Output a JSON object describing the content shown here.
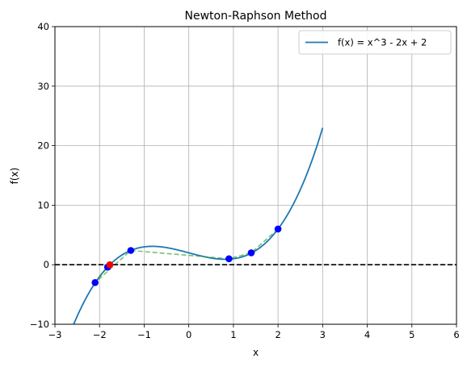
{
  "chart_data": {
    "type": "line",
    "title": "Newton-Raphson Method",
    "xlabel": "x",
    "ylabel": "f(x)",
    "xlim": [
      -3,
      6
    ],
    "ylim": [
      -10,
      40
    ],
    "xticks": [
      -3,
      -2,
      -1,
      0,
      1,
      2,
      3,
      4,
      5,
      6
    ],
    "yticks": [
      -10,
      0,
      10,
      20,
      30,
      40
    ],
    "grid": true,
    "legend": {
      "position": "top-right",
      "entries": [
        "f(x) = x^3 - 2x + 2"
      ]
    },
    "series": [
      {
        "name": "f(x) = x^3 - 2x + 2",
        "kind": "function",
        "expression": "x^3 - 2x + 2",
        "x_range": [
          -3,
          3
        ],
        "color": "#1f77b4"
      },
      {
        "kind": "iteration-path",
        "style": "dashed",
        "color": "#2ca02c",
        "x": [
          2.0,
          1.4,
          0.9,
          -1.3,
          -2.1,
          -1.82,
          -1.77
        ],
        "y": [
          6.0,
          2.0,
          1.0,
          2.4,
          -3.0,
          -0.4,
          0.0
        ]
      },
      {
        "kind": "iterates",
        "color": "#0000ff",
        "x": [
          2.0,
          1.4,
          0.9,
          -1.3,
          -2.1,
          -1.82
        ],
        "y": [
          6.0,
          2.0,
          1.0,
          2.4,
          -3.0,
          -0.4
        ]
      },
      {
        "kind": "root",
        "color": "#ff0000",
        "x": [
          -1.77
        ],
        "y": [
          0.0
        ]
      }
    ],
    "reference_line": {
      "y": 0,
      "style": "dashed",
      "color": "#000000"
    }
  }
}
